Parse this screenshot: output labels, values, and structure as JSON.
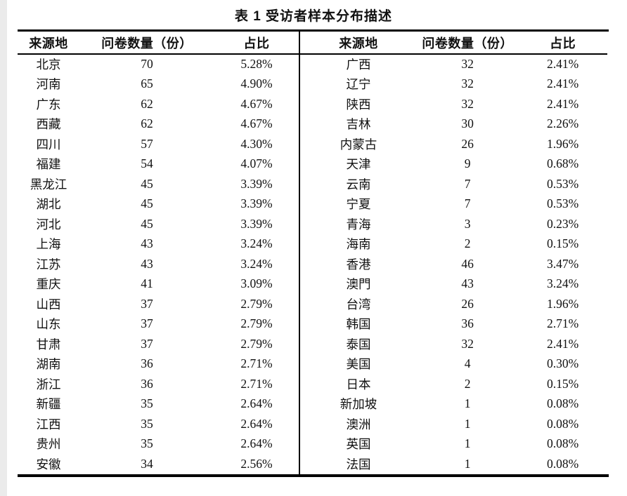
{
  "caption": "表 1 受访者样本分布描述",
  "table": {
    "headers": [
      "来源地",
      "问卷数量（份）",
      "占比"
    ],
    "left_rows": [
      {
        "region": "北京",
        "count": "70",
        "pct": "5.28%"
      },
      {
        "region": "河南",
        "count": "65",
        "pct": "4.90%"
      },
      {
        "region": "广东",
        "count": "62",
        "pct": "4.67%"
      },
      {
        "region": "西藏",
        "count": "62",
        "pct": "4.67%"
      },
      {
        "region": "四川",
        "count": "57",
        "pct": "4.30%"
      },
      {
        "region": "福建",
        "count": "54",
        "pct": "4.07%"
      },
      {
        "region": "黑龙江",
        "count": "45",
        "pct": "3.39%"
      },
      {
        "region": "湖北",
        "count": "45",
        "pct": "3.39%"
      },
      {
        "region": "河北",
        "count": "45",
        "pct": "3.39%"
      },
      {
        "region": "上海",
        "count": "43",
        "pct": "3.24%"
      },
      {
        "region": "江苏",
        "count": "43",
        "pct": "3.24%"
      },
      {
        "region": "重庆",
        "count": "41",
        "pct": "3.09%"
      },
      {
        "region": "山西",
        "count": "37",
        "pct": "2.79%"
      },
      {
        "region": "山东",
        "count": "37",
        "pct": "2.79%"
      },
      {
        "region": "甘肃",
        "count": "37",
        "pct": "2.79%"
      },
      {
        "region": "湖南",
        "count": "36",
        "pct": "2.71%"
      },
      {
        "region": "浙江",
        "count": "36",
        "pct": "2.71%"
      },
      {
        "region": "新疆",
        "count": "35",
        "pct": "2.64%"
      },
      {
        "region": "江西",
        "count": "35",
        "pct": "2.64%"
      },
      {
        "region": "贵州",
        "count": "35",
        "pct": "2.64%"
      },
      {
        "region": "安徽",
        "count": "34",
        "pct": "2.56%"
      }
    ],
    "right_rows": [
      {
        "region": "广西",
        "count": "32",
        "pct": "2.41%"
      },
      {
        "region": "辽宁",
        "count": "32",
        "pct": "2.41%"
      },
      {
        "region": "陕西",
        "count": "32",
        "pct": "2.41%"
      },
      {
        "region": "吉林",
        "count": "30",
        "pct": "2.26%"
      },
      {
        "region": "内蒙古",
        "count": "26",
        "pct": "1.96%"
      },
      {
        "region": "天津",
        "count": "9",
        "pct": "0.68%"
      },
      {
        "region": "云南",
        "count": "7",
        "pct": "0.53%"
      },
      {
        "region": "宁夏",
        "count": "7",
        "pct": "0.53%"
      },
      {
        "region": "青海",
        "count": "3",
        "pct": "0.23%"
      },
      {
        "region": "海南",
        "count": "2",
        "pct": "0.15%"
      },
      {
        "region": "香港",
        "count": "46",
        "pct": "3.47%"
      },
      {
        "region": "澳門",
        "count": "43",
        "pct": "3.24%"
      },
      {
        "region": "台湾",
        "count": "26",
        "pct": "1.96%"
      },
      {
        "region": "韩国",
        "count": "36",
        "pct": "2.71%"
      },
      {
        "region": "泰国",
        "count": "32",
        "pct": "2.41%"
      },
      {
        "region": "美国",
        "count": "4",
        "pct": "0.30%"
      },
      {
        "region": "日本",
        "count": "2",
        "pct": "0.15%"
      },
      {
        "region": "新加坡",
        "count": "1",
        "pct": "0.08%"
      },
      {
        "region": "澳洲",
        "count": "1",
        "pct": "0.08%"
      },
      {
        "region": "英国",
        "count": "1",
        "pct": "0.08%"
      },
      {
        "region": "法国",
        "count": "1",
        "pct": "0.08%"
      }
    ]
  }
}
